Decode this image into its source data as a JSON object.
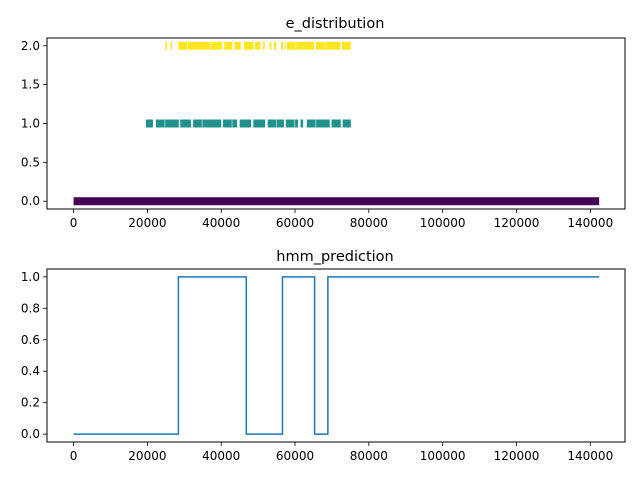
{
  "chart_data": [
    {
      "type": "scatter",
      "title": "e_distribution",
      "xlim": [
        -7200,
        149400
      ],
      "ylim": [
        -0.1,
        2.1
      ],
      "xticks": [
        0,
        20000,
        40000,
        60000,
        80000,
        100000,
        120000,
        140000
      ],
      "yticks": [
        0.0,
        0.5,
        1.0,
        1.5,
        2.0
      ],
      "xtick_labels": [
        "0",
        "20000",
        "40000",
        "60000",
        "80000",
        "100000",
        "120000",
        "140000"
      ],
      "ytick_labels": [
        "0.0",
        "0.5",
        "1.0",
        "1.5",
        "2.0"
      ],
      "grid": false,
      "marker": "vertical-line",
      "series": [
        {
          "y": 0,
          "color": "#440154",
          "segments": [
            [
              0,
              142400
            ]
          ]
        },
        {
          "y": 1,
          "color": "#21918c",
          "segments": [
            [
              19600,
              21500
            ],
            [
              22300,
              28500
            ],
            [
              28900,
              31800
            ],
            [
              32400,
              40000
            ],
            [
              40500,
              44300
            ],
            [
              45000,
              48100
            ],
            [
              48700,
              51900
            ],
            [
              52600,
              57000
            ],
            [
              57500,
              60800
            ],
            [
              61500,
              62200
            ],
            [
              63200,
              69400
            ],
            [
              69900,
              72400
            ],
            [
              72900,
              75100
            ]
          ]
        },
        {
          "y": 2,
          "color": "#fde725",
          "segments": [
            [
              24900,
              25300
            ],
            [
              26300,
              26700
            ],
            [
              28400,
              40200
            ],
            [
              40800,
              43000
            ],
            [
              43600,
              45300
            ],
            [
              46200,
              48800
            ],
            [
              49200,
              50600
            ],
            [
              51300,
              51800
            ],
            [
              53100,
              53600
            ],
            [
              54300,
              54900
            ],
            [
              56200,
              56700
            ],
            [
              57200,
              57500
            ],
            [
              57800,
              65200
            ],
            [
              65700,
              72300
            ],
            [
              72700,
              75100
            ]
          ]
        }
      ]
    },
    {
      "type": "line",
      "title": "hmm_prediction",
      "xlim": [
        -7200,
        149400
      ],
      "ylim": [
        -0.05,
        1.05
      ],
      "xticks": [
        0,
        20000,
        40000,
        60000,
        80000,
        100000,
        120000,
        140000
      ],
      "yticks": [
        0.0,
        0.2,
        0.4,
        0.6,
        0.8,
        1.0
      ],
      "xtick_labels": [
        "0",
        "20000",
        "40000",
        "60000",
        "80000",
        "100000",
        "120000",
        "140000"
      ],
      "ytick_labels": [
        "0.0",
        "0.2",
        "0.4",
        "0.6",
        "0.8",
        "1.0"
      ],
      "grid": false,
      "color": "#1f77b4",
      "x": [
        0,
        28400,
        28400,
        46800,
        46800,
        56600,
        56600,
        65300,
        65300,
        68900,
        68900,
        142400
      ],
      "y": [
        0,
        0,
        1,
        1,
        0,
        0,
        1,
        1,
        0,
        0,
        1,
        1
      ]
    }
  ]
}
